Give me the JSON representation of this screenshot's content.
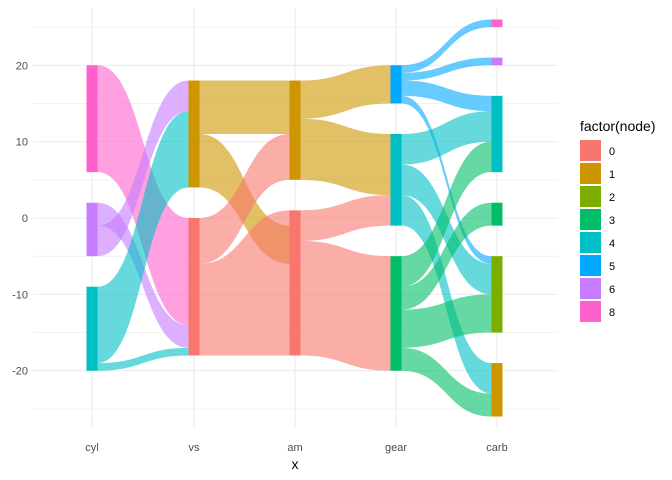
{
  "chart_data": {
    "type": "sankey",
    "xlabel": "x",
    "ylabel": "",
    "x_categories": [
      "cyl",
      "vs",
      "am",
      "gear",
      "carb"
    ],
    "y_ticks": [
      -20,
      -10,
      0,
      10,
      20
    ],
    "ylim": [
      -27.5,
      27.5
    ],
    "grid": true,
    "legend": {
      "title": "factor(node)",
      "placement": "right",
      "entries": [
        {
          "label": "0",
          "color": "#F8766D"
        },
        {
          "label": "1",
          "color": "#CD9600"
        },
        {
          "label": "2",
          "color": "#7CAE00"
        },
        {
          "label": "3",
          "color": "#00BE67"
        },
        {
          "label": "4",
          "color": "#00BFC4"
        },
        {
          "label": "5",
          "color": "#00A9FF"
        },
        {
          "label": "6",
          "color": "#C77CFF"
        },
        {
          "label": "8",
          "color": "#FF61CC"
        }
      ]
    },
    "nodes": [
      {
        "axis": "cyl",
        "node": "8",
        "count": 14,
        "y_top": 20,
        "y_bottom": 6
      },
      {
        "axis": "cyl",
        "node": "6",
        "count": 7,
        "y_top": 2,
        "y_bottom": -5
      },
      {
        "axis": "cyl",
        "node": "4",
        "count": 11,
        "y_top": -9,
        "y_bottom": -20
      },
      {
        "axis": "vs",
        "node": "1",
        "count": 14,
        "y_top": 18,
        "y_bottom": 4
      },
      {
        "axis": "vs",
        "node": "0",
        "count": 18,
        "y_top": 0,
        "y_bottom": -18
      },
      {
        "axis": "am",
        "node": "1",
        "count": 13,
        "y_top": 18,
        "y_bottom": 5
      },
      {
        "axis": "am",
        "node": "0",
        "count": 19,
        "y_top": 1,
        "y_bottom": -18
      },
      {
        "axis": "gear",
        "node": "5",
        "count": 5,
        "y_top": 20,
        "y_bottom": 15
      },
      {
        "axis": "gear",
        "node": "4",
        "count": 12,
        "y_top": 11,
        "y_bottom": -1
      },
      {
        "axis": "gear",
        "node": "3",
        "count": 15,
        "y_top": -5,
        "y_bottom": -20
      },
      {
        "axis": "carb",
        "node": "8",
        "count": 1,
        "y_top": 26,
        "y_bottom": 25
      },
      {
        "axis": "carb",
        "node": "6",
        "count": 1,
        "y_top": 21,
        "y_bottom": 20
      },
      {
        "axis": "carb",
        "node": "4",
        "count": 10,
        "y_top": 16,
        "y_bottom": 6
      },
      {
        "axis": "carb",
        "node": "3",
        "count": 3,
        "y_top": 2,
        "y_bottom": -1
      },
      {
        "axis": "carb",
        "node": "2",
        "count": 10,
        "y_top": -5,
        "y_bottom": -15
      },
      {
        "axis": "carb",
        "node": "1",
        "count": 7,
        "y_top": -19,
        "y_bottom": -26
      }
    ],
    "flows": [
      {
        "from": "cyl",
        "to": "vs",
        "color": "#FF61CC",
        "y0": [
          20,
          6
        ],
        "y1": [
          0,
          -14
        ]
      },
      {
        "from": "cyl",
        "to": "vs",
        "color": "#C77CFF",
        "y0": [
          2,
          -1
        ],
        "y1": [
          -14,
          -17
        ]
      },
      {
        "from": "cyl",
        "to": "vs",
        "color": "#C77CFF",
        "y0": [
          -1,
          -5
        ],
        "y1": [
          18,
          14
        ]
      },
      {
        "from": "cyl",
        "to": "vs",
        "color": "#00BFC4",
        "y0": [
          -9,
          -19
        ],
        "y1": [
          14,
          4
        ]
      },
      {
        "from": "cyl",
        "to": "vs",
        "color": "#00BFC4",
        "y0": [
          -19,
          -20
        ],
        "y1": [
          -17,
          -18
        ]
      },
      {
        "from": "vs",
        "to": "am",
        "color": "#CD9600",
        "y0": [
          18,
          11
        ],
        "y1": [
          18,
          11
        ]
      },
      {
        "from": "vs",
        "to": "am",
        "color": "#CD9600",
        "y0": [
          11,
          4
        ],
        "y1": [
          -1,
          -6
        ]
      },
      {
        "from": "vs",
        "to": "am",
        "color": "#F8766D",
        "y0": [
          0,
          -6
        ],
        "y1": [
          11,
          5
        ]
      },
      {
        "from": "vs",
        "to": "am",
        "color": "#F8766D",
        "y0": [
          -6,
          -18
        ],
        "y1": [
          1,
          -18
        ]
      },
      {
        "from": "am",
        "to": "gear",
        "color": "#CD9600",
        "y0": [
          18,
          13
        ],
        "y1": [
          20,
          15
        ]
      },
      {
        "from": "am",
        "to": "gear",
        "color": "#CD9600",
        "y0": [
          13,
          5
        ],
        "y1": [
          11,
          3
        ]
      },
      {
        "from": "am",
        "to": "gear",
        "color": "#F8766D",
        "y0": [
          1,
          -3
        ],
        "y1": [
          3,
          -1
        ]
      },
      {
        "from": "am",
        "to": "gear",
        "color": "#F8766D",
        "y0": [
          -3,
          -18
        ],
        "y1": [
          -5,
          -20
        ]
      },
      {
        "from": "gear",
        "to": "carb",
        "color": "#00A9FF",
        "y0": [
          20,
          19
        ],
        "y1": [
          26,
          25
        ]
      },
      {
        "from": "gear",
        "to": "carb",
        "color": "#00A9FF",
        "y0": [
          19,
          18
        ],
        "y1": [
          21,
          20
        ]
      },
      {
        "from": "gear",
        "to": "carb",
        "color": "#00A9FF",
        "y0": [
          18,
          16
        ],
        "y1": [
          16,
          14
        ]
      },
      {
        "from": "gear",
        "to": "carb",
        "color": "#00A9FF",
        "y0": [
          16,
          15
        ],
        "y1": [
          -5,
          -6
        ]
      },
      {
        "from": "gear",
        "to": "carb",
        "color": "#00BFC4",
        "y0": [
          11,
          7
        ],
        "y1": [
          14,
          10
        ]
      },
      {
        "from": "gear",
        "to": "carb",
        "color": "#00BFC4",
        "y0": [
          7,
          3
        ],
        "y1": [
          -6,
          -10
        ]
      },
      {
        "from": "gear",
        "to": "carb",
        "color": "#00BFC4",
        "y0": [
          3,
          -1
        ],
        "y1": [
          -19,
          -23
        ]
      },
      {
        "from": "gear",
        "to": "carb",
        "color": "#00BE67",
        "y0": [
          -5,
          -9
        ],
        "y1": [
          10,
          6
        ]
      },
      {
        "from": "gear",
        "to": "carb",
        "color": "#00BE67",
        "y0": [
          -9,
          -12
        ],
        "y1": [
          2,
          -1
        ]
      },
      {
        "from": "gear",
        "to": "carb",
        "color": "#00BE67",
        "y0": [
          -12,
          -17
        ],
        "y1": [
          -10,
          -15
        ]
      },
      {
        "from": "gear",
        "to": "carb",
        "color": "#00BE67",
        "y0": [
          -17,
          -20
        ],
        "y1": [
          -23,
          -26
        ]
      }
    ]
  }
}
